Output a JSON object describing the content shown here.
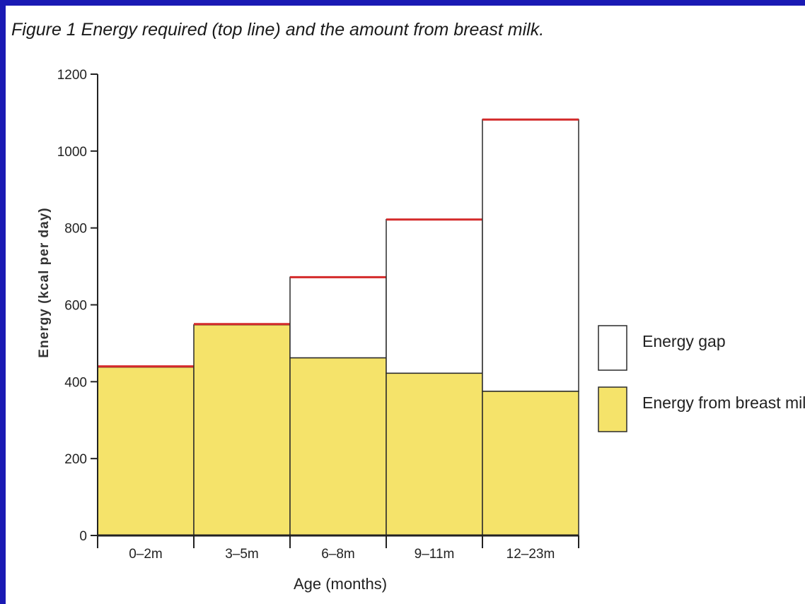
{
  "colors": {
    "frame": "#1a1ab4",
    "breast_milk": "#f5e36a",
    "gap": "#ffffff",
    "required_line": "#d42a2a",
    "outline": "#2a2a2a"
  },
  "chart_data": {
    "type": "bar",
    "stacked": true,
    "title": "Figure 1    Energy required (top line) and the amount from breast milk.",
    "xlabel": "Age (months)",
    "ylabel": "Energy (kcal per day)",
    "ylim": [
      0,
      1200
    ],
    "yticks": [
      0,
      200,
      400,
      600,
      800,
      1000,
      1200
    ],
    "categories": [
      "0–2m",
      "3–5m",
      "6–8m",
      "9–11m",
      "12–23m"
    ],
    "series": [
      {
        "name": "Energy from breast milk",
        "values": [
          438,
          548,
          462,
          422,
          375
        ]
      },
      {
        "name": "Energy gap",
        "values": [
          0,
          0,
          210,
          400,
          705
        ]
      }
    ],
    "required_total": [
      440,
      550,
      672,
      822,
      1082
    ],
    "legend": {
      "position": "right",
      "entries": [
        "Energy gap",
        "Energy from breast milk"
      ]
    },
    "grid": false
  }
}
